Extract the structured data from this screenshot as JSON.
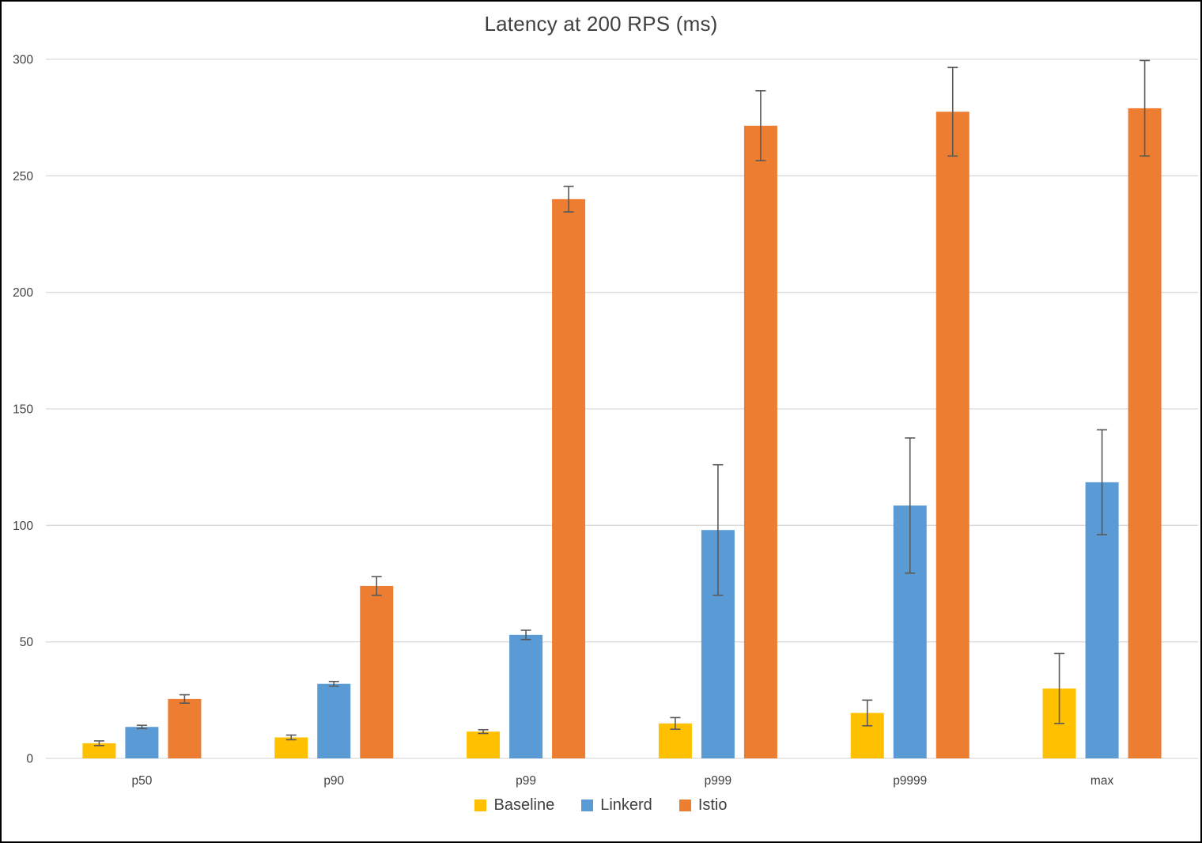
{
  "title": "Latency at 200 RPS (ms)",
  "colors": {
    "baseline": "#FFC000",
    "linkerd": "#5B9BD5",
    "istio": "#ED7D31",
    "gridline": "#D9D9D9",
    "axis_line": "#D9D9D9",
    "error_bar": "#595959",
    "text": "#404040",
    "frame_border": "#000000",
    "background": "#FFFFFF"
  },
  "chart_data": {
    "type": "bar",
    "title": "Latency at 200 RPS (ms)",
    "xlabel": "",
    "ylabel": "",
    "categories": [
      "p50",
      "p90",
      "p99",
      "p999",
      "p9999",
      "max"
    ],
    "series": [
      {
        "name": "Baseline",
        "color": "#FFC000",
        "values": [
          6.5,
          9,
          11.5,
          15,
          19.5,
          30
        ],
        "errors": [
          1,
          1,
          0.8,
          2.5,
          5.5,
          15
        ]
      },
      {
        "name": "Linkerd",
        "color": "#5B9BD5",
        "values": [
          13.5,
          32,
          53,
          98,
          108.5,
          118.5
        ],
        "errors": [
          0.7,
          1,
          2,
          28,
          29,
          22.5
        ]
      },
      {
        "name": "Istio",
        "color": "#ED7D31",
        "values": [
          25.5,
          74,
          240,
          271.5,
          277.5,
          279
        ],
        "errors": [
          1.8,
          4,
          5.5,
          15,
          19,
          20.5
        ]
      }
    ],
    "ylim": [
      0,
      300
    ],
    "yticks": [
      0,
      50,
      100,
      150,
      200,
      250,
      300
    ],
    "grid": true,
    "error_bars": true,
    "legend_position": "bottom"
  }
}
